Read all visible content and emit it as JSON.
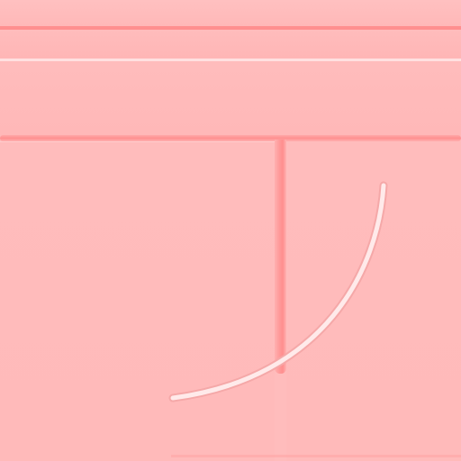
{
  "colors": {
    "background": "#ffbcbc",
    "rule": "#ff8f8f",
    "highlight": "#ffe0e0",
    "divider": "#ff9a9a",
    "arc": "#ffeaea"
  },
  "icons": [
    "curved-arc-stroke"
  ]
}
